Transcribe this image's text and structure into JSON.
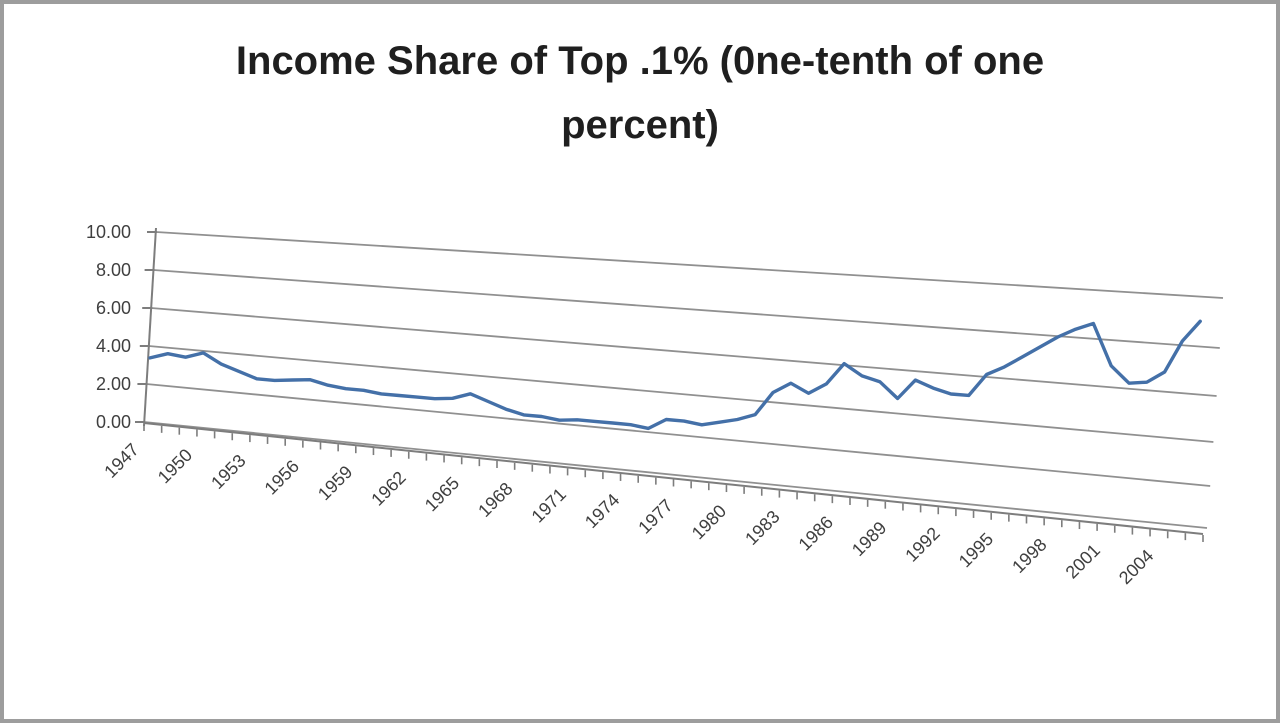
{
  "window": {
    "background": "#ffffff",
    "frame_border_color": "#9d9d9d"
  },
  "chart_data": {
    "type": "line",
    "title": "Income Share of Top .1% (0ne-tenth of one percent)",
    "title_lines": [
      "Income Share of Top .1% (0ne-tenth of one",
      "percent)"
    ],
    "x": [
      1947,
      1948,
      1949,
      1950,
      1951,
      1952,
      1953,
      1954,
      1955,
      1956,
      1957,
      1958,
      1959,
      1960,
      1961,
      1962,
      1963,
      1964,
      1965,
      1966,
      1967,
      1968,
      1969,
      1970,
      1971,
      1972,
      1973,
      1974,
      1975,
      1976,
      1977,
      1978,
      1979,
      1980,
      1981,
      1982,
      1983,
      1984,
      1985,
      1986,
      1987,
      1988,
      1989,
      1990,
      1991,
      1992,
      1993,
      1994,
      1995,
      1996,
      1997,
      1998,
      1999,
      2000,
      2001,
      2002,
      2003,
      2004,
      2005,
      2006
    ],
    "values": [
      3.4,
      3.7,
      3.6,
      3.9,
      3.4,
      3.1,
      2.8,
      2.8,
      2.9,
      3.0,
      2.8,
      2.7,
      2.7,
      2.6,
      2.6,
      2.6,
      2.6,
      2.7,
      3.0,
      2.7,
      2.4,
      2.2,
      2.2,
      2.1,
      2.2,
      2.2,
      2.2,
      2.2,
      2.1,
      2.6,
      2.6,
      2.5,
      2.7,
      2.9,
      3.2,
      4.3,
      4.8,
      4.4,
      4.9,
      5.9,
      5.4,
      5.2,
      4.5,
      5.4,
      5.1,
      4.9,
      4.9,
      5.9,
      6.3,
      6.8,
      7.3,
      7.8,
      8.2,
      8.5,
      6.7,
      6.0,
      6.1,
      6.6,
      8.0,
      8.9
    ],
    "xlabel": "",
    "ylabel": "",
    "ylim": [
      0,
      10
    ],
    "y_tick_values": [
      10,
      8,
      6,
      4,
      2,
      0
    ],
    "y_tick_labels": [
      "10.00",
      "8.00",
      "6.00",
      "4.00",
      "2.00",
      "0.00"
    ],
    "x_tick_labels": [
      "1947",
      "1950",
      "1953",
      "1956",
      "1959",
      "1962",
      "1965",
      "1968",
      "1971",
      "1974",
      "1977",
      "1980",
      "1983",
      "1986",
      "1989",
      "1992",
      "1995",
      "1998",
      "2001",
      "2004"
    ],
    "x_label_every_n_years": 3,
    "legend": "none",
    "grid": true,
    "layout_hint": "3D-tilted plot area: gridlines slant down to the right, x labels rotated 45 degrees",
    "style": {
      "line_color": "#4470a8",
      "grid_color": "#909090",
      "axis_color": "#7d7d7d",
      "tick_label_color": "#3f3f3f",
      "title_color": "#1f1f1f",
      "background": "#ffffff"
    }
  }
}
